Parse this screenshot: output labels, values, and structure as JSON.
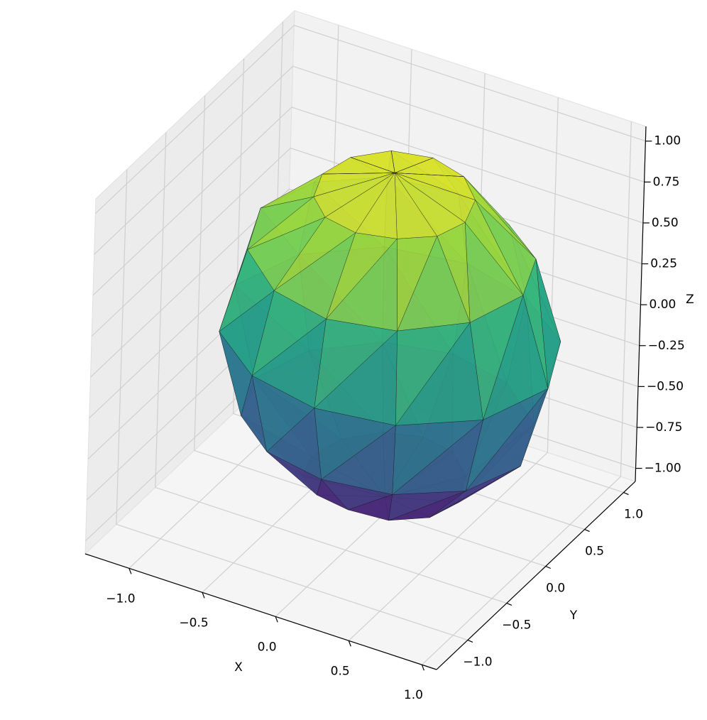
{
  "chart_data": {
    "type": "trisurf",
    "xlabel": "X",
    "ylabel": "Y",
    "zlabel": "Z",
    "xlim": [
      -1.3,
      1.1
    ],
    "ylim": [
      -1.4,
      1.15
    ],
    "zlim": [
      -1.08,
      1.09
    ],
    "xticks": [
      {
        "value": -1.0,
        "label": "−1.0"
      },
      {
        "value": -0.5,
        "label": "−0.5"
      },
      {
        "value": 0,
        "label": "0.0"
      },
      0.5,
      {
        "value": 1.0,
        "label": "1.0"
      }
    ],
    "yticks": [
      {
        "value": -1.0,
        "label": "−1.0"
      },
      {
        "value": -0.5,
        "label": "−0.5"
      },
      {
        "value": 0,
        "label": "0.0"
      },
      0.5,
      {
        "value": 1.0,
        "label": "1.0"
      }
    ],
    "zticks": [
      {
        "value": -1.0,
        "label": "−1.00"
      },
      {
        "value": -0.75,
        "label": "−0.75"
      },
      {
        "value": -0.5,
        "label": "−0.50"
      },
      {
        "value": -0.25,
        "label": "−0.25"
      },
      {
        "value": 0,
        "label": "0.00"
      },
      {
        "value": 0.25,
        "label": "0.25"
      },
      {
        "value": 0.5,
        "label": "0.50"
      },
      {
        "value": 0.75,
        "label": "0.75"
      },
      {
        "value": 1.0,
        "label": "1.00"
      }
    ],
    "grid": true,
    "surface": {
      "colormap": "viridis",
      "lat": [
        -90,
        -60,
        -30,
        0,
        30,
        60,
        90
      ],
      "lon": [
        0,
        30,
        60,
        90,
        120,
        150,
        180,
        210,
        240,
        270,
        300,
        330
      ],
      "r": [
        [
          0.98,
          0.98,
          0.98,
          0.98,
          0.98,
          0.98,
          0.98,
          0.98,
          0.98,
          0.98,
          0.98,
          0.98
        ],
        [
          1.0,
          0.97,
          0.95,
          0.96,
          0.98,
          1.0,
          1.02,
          1.0,
          0.98,
          0.97,
          0.99,
          1.0
        ],
        [
          1.05,
          1.02,
          0.98,
          0.97,
          1.0,
          1.03,
          1.05,
          1.02,
          0.99,
          0.98,
          1.0,
          1.03
        ],
        [
          1.08,
          1.03,
          0.97,
          0.99,
          1.02,
          1.04,
          1.06,
          1.03,
          0.98,
          0.97,
          1.01,
          1.06
        ],
        [
          1.03,
          1.0,
          0.96,
          0.98,
          1.01,
          1.03,
          1.04,
          1.01,
          0.97,
          0.98,
          1.0,
          1.02
        ],
        [
          0.97,
          0.98,
          0.99,
          1.0,
          1.0,
          0.99,
          0.98,
          0.97,
          0.98,
          0.99,
          1.0,
          0.98
        ],
        [
          1.0,
          1.0,
          1.0,
          1.0,
          1.0,
          1.0,
          1.0,
          1.0,
          1.0,
          1.0,
          1.0,
          1.0
        ]
      ]
    }
  }
}
